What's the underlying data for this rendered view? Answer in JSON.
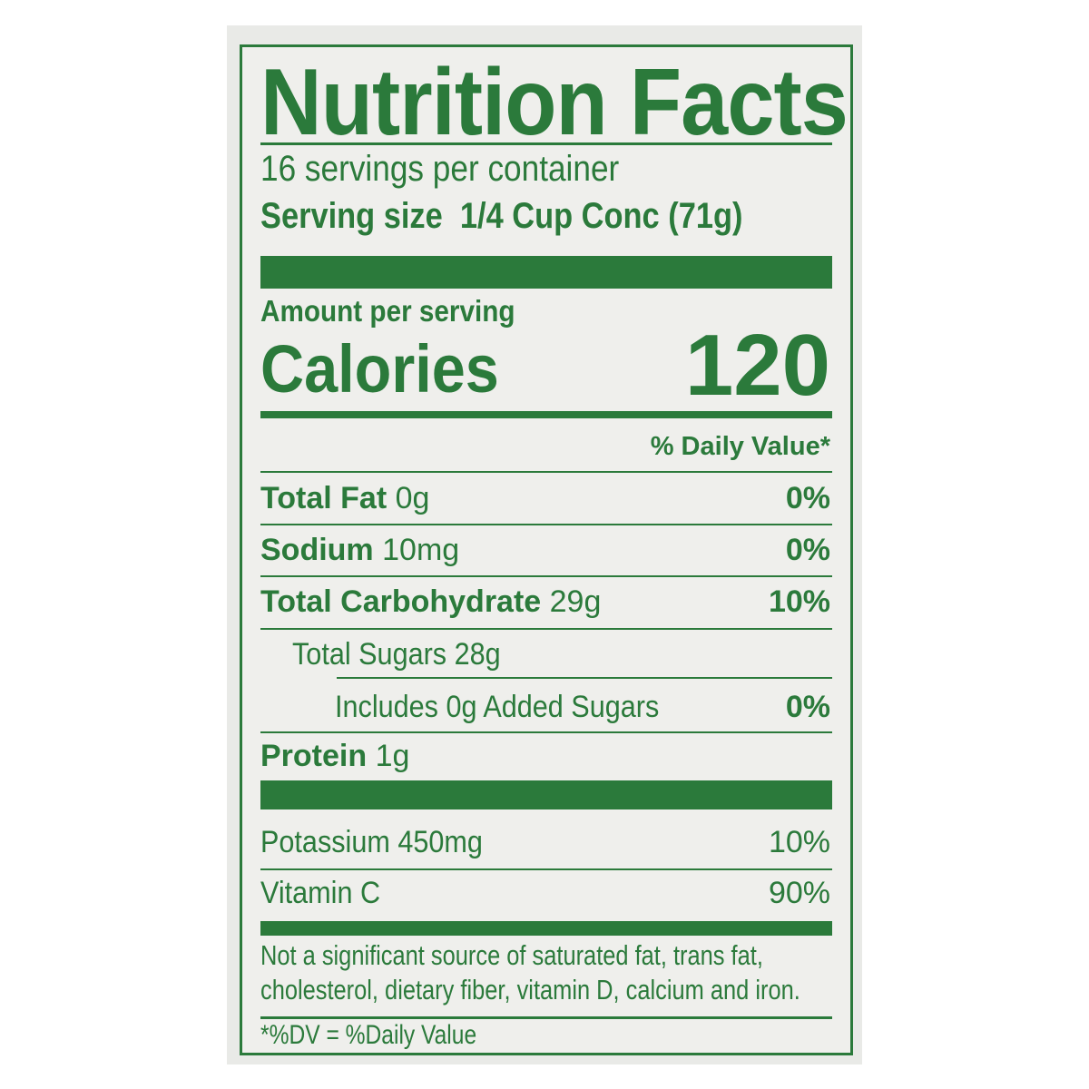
{
  "title": "Nutrition Facts",
  "servings_per_container": "16 servings per container",
  "serving_size": {
    "label": "Serving size",
    "value": "1/4 Cup Conc (71g)"
  },
  "amount_per_serving": "Amount per serving",
  "calories": {
    "label": "Calories",
    "value": "120"
  },
  "daily_value_header": "% Daily Value*",
  "nutrients": [
    {
      "name": "Total Fat",
      "amount": "0g",
      "dv": "0%"
    },
    {
      "name": "Sodium",
      "amount": "10mg",
      "dv": "0%"
    },
    {
      "name": "Total Carbohydrate",
      "amount": "29g",
      "dv": "10%"
    },
    {
      "name": "Total Sugars 28g",
      "amount": "",
      "dv": ""
    },
    {
      "name": "Includes 0g Added Sugars",
      "amount": "",
      "dv": "0%"
    },
    {
      "name": "Protein",
      "amount": "1g",
      "dv": ""
    }
  ],
  "vitamins": [
    {
      "name": "Potassium 450mg",
      "dv": "10%"
    },
    {
      "name": "Vitamin C",
      "dv": "90%"
    }
  ],
  "footnote": [
    "Not a significant source of saturated fat, trans fat,",
    "cholesterol, dietary fiber, vitamin D, calcium and iron."
  ],
  "dv_note": "*%DV = %Daily Value",
  "colors": {
    "ink": "#2b7a3b",
    "background": "#efefec"
  }
}
